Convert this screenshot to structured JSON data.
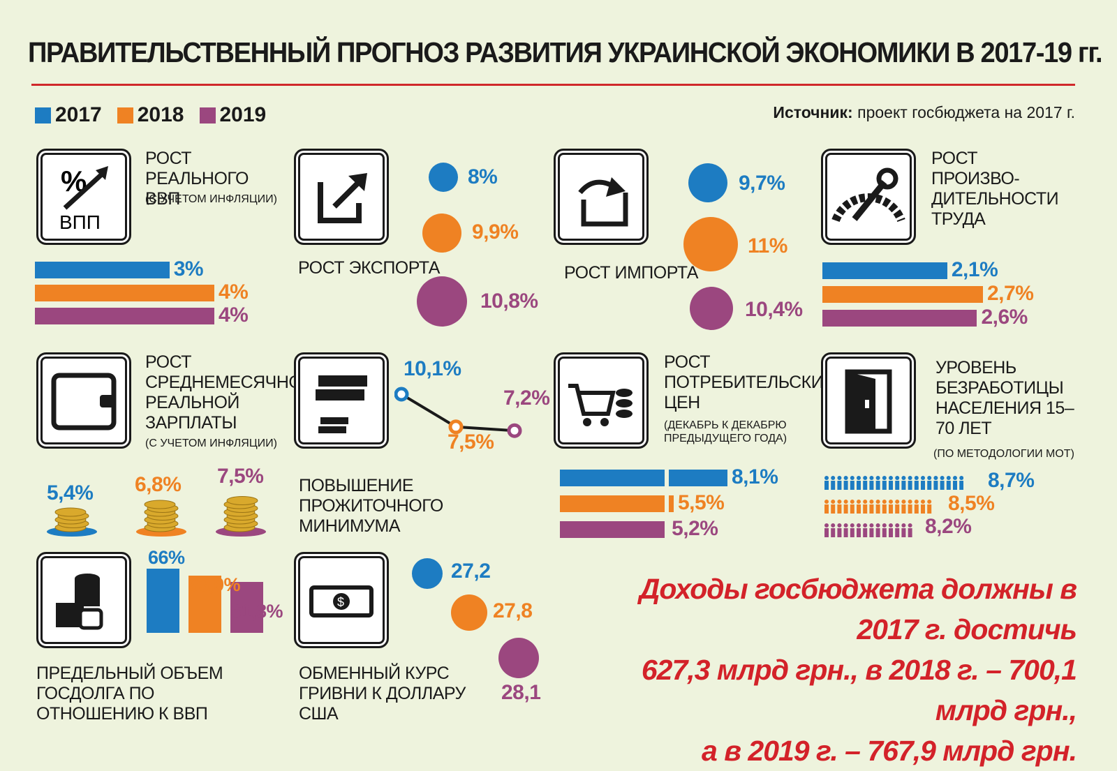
{
  "title": "ПРАВИТЕЛЬСТВЕННЫЙ ПРОГНОЗ РАЗВИТИЯ УКРАИНСКОЙ ЭКОНОМИКИ В 2017-19 гг.",
  "legend": [
    "2017",
    "2018",
    "2019"
  ],
  "colors": {
    "y2017": "#1d7cc2",
    "y2018": "#ef8223",
    "y2019": "#9b477f",
    "accent": "#d0282a"
  },
  "source": {
    "label": "Источник:",
    "text": "проект госбюджета на 2017 г."
  },
  "gdp": {
    "label": "РОСТ РЕАЛЬНОГО ВВП",
    "sub": "(С УЧЕТОМ ИНФЛЯЦИИ)",
    "icon_text": "ВПП",
    "values": [
      "3%",
      "4%",
      "4%"
    ]
  },
  "export": {
    "label": "РОСТ ЭКСПОРТА",
    "values": [
      "8%",
      "9,9%",
      "10,8%"
    ]
  },
  "import": {
    "label": "РОСТ ИМПОРТА",
    "values": [
      "9,7%",
      "11%",
      "10,4%"
    ]
  },
  "productivity": {
    "label": "РОСТ ПРОИЗВО-ДИТЕЛЬНОСТИ ТРУДА",
    "values": [
      "2,1%",
      "2,7%",
      "2,6%"
    ]
  },
  "wages": {
    "label": "РОСТ СРЕДНЕМЕСЯЧНОЙ РЕАЛЬНОЙ ЗАРПЛАТЫ",
    "sub": "(С УЧЕТОМ ИНФЛЯЦИИ)",
    "values": [
      "5,4%",
      "6,8%",
      "7,5%"
    ]
  },
  "minimum": {
    "label": "ПОВЫШЕНИЕ ПРОЖИТОЧНОГО МИНИМУМА",
    "values": [
      "10,1%",
      "7,5%",
      "7,2%"
    ]
  },
  "cpi": {
    "label": "РОСТ ПОТРЕБИТЕЛЬСКИХ ЦЕН",
    "sub": "(ДЕКАБРЬ К ДЕКАБРЮ ПРЕДЫДУЩЕГО ГОДА)",
    "values": [
      "8,1%",
      "5,5%",
      "5,2%"
    ]
  },
  "unemployment": {
    "label": "УРОВЕНЬ БЕЗРАБОТИЦЫ НАСЕЛЕНИЯ 15–70 ЛЕТ",
    "sub": "(ПО МЕТОДОЛОГИИ МОТ)",
    "values": [
      "8,7%",
      "8,5%",
      "8,2%"
    ]
  },
  "debt": {
    "label": "ПРЕДЕЛЬНЫЙ ОБЪЕМ ГОСДОЛГА ПО ОТНОШЕНИЮ К ВВП",
    "values": [
      "66%",
      "63,9%",
      "61,8%"
    ]
  },
  "fx": {
    "label": "ОБМЕННЫЙ КУРС ГРИВНИ К ДОЛЛАРУ США",
    "values": [
      "27,2",
      "27,8",
      "28,1"
    ]
  },
  "revenue": {
    "line1": "Доходы госбюджета должны в 2017 г. достичь",
    "line2": "627,3 млрд грн., в 2018 г. – 700,1 млрд грн.,",
    "line3": "а в 2019 г. – 767,9 млрд грн."
  },
  "chart_data": [
    {
      "type": "bar",
      "title": "РОСТ РЕАЛЬНОГО ВВП",
      "categories": [
        "2017",
        "2018",
        "2019"
      ],
      "values": [
        3,
        4,
        4
      ],
      "unit": "%"
    },
    {
      "type": "scatter",
      "title": "РОСТ ЭКСПОРТА",
      "categories": [
        "2017",
        "2018",
        "2019"
      ],
      "values": [
        8,
        9.9,
        10.8
      ],
      "unit": "%"
    },
    {
      "type": "scatter",
      "title": "РОСТ ИМПОРТА",
      "categories": [
        "2017",
        "2018",
        "2019"
      ],
      "values": [
        9.7,
        11,
        10.4
      ],
      "unit": "%"
    },
    {
      "type": "bar",
      "title": "РОСТ ПРОИЗВО-ДИТЕЛЬНОСТИ ТРУДА",
      "categories": [
        "2017",
        "2018",
        "2019"
      ],
      "values": [
        2.1,
        2.7,
        2.6
      ],
      "unit": "%"
    },
    {
      "type": "bar",
      "title": "РОСТ СРЕДНЕМЕСЯЧНОЙ РЕАЛЬНОЙ ЗАРПЛАТЫ",
      "categories": [
        "2017",
        "2018",
        "2019"
      ],
      "values": [
        5.4,
        6.8,
        7.5
      ],
      "unit": "%"
    },
    {
      "type": "line",
      "title": "ПОВЫШЕНИЕ ПРОЖИТОЧНОГО МИНИМУМА",
      "categories": [
        "2017",
        "2018",
        "2019"
      ],
      "values": [
        10.1,
        7.5,
        7.2
      ],
      "unit": "%"
    },
    {
      "type": "bar",
      "title": "РОСТ ПОТРЕБИТЕЛЬСКИХ ЦЕН",
      "categories": [
        "2017",
        "2018",
        "2019"
      ],
      "values": [
        8.1,
        5.5,
        5.2
      ],
      "unit": "%"
    },
    {
      "type": "bar",
      "title": "УРОВЕНЬ БЕЗРАБОТИЦЫ НАСЕЛЕНИЯ 15–70 ЛЕТ",
      "categories": [
        "2017",
        "2018",
        "2019"
      ],
      "values": [
        8.7,
        8.5,
        8.2
      ],
      "unit": "%"
    },
    {
      "type": "bar",
      "title": "ПРЕДЕЛЬНЫЙ ОБЪЕМ ГОСДОЛГА ПО ОТНОШЕНИЮ К ВВП",
      "categories": [
        "2017",
        "2018",
        "2019"
      ],
      "values": [
        66,
        63.9,
        61.8
      ],
      "unit": "%"
    },
    {
      "type": "scatter",
      "title": "ОБМЕННЫЙ КУРС ГРИВНИ К ДОЛЛАРУ США",
      "categories": [
        "2017",
        "2018",
        "2019"
      ],
      "values": [
        27.2,
        27.8,
        28.1
      ]
    }
  ]
}
